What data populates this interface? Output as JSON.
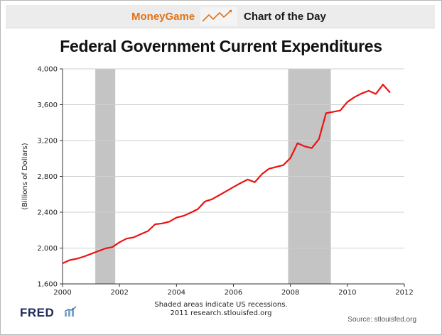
{
  "banner": {
    "brand_money": "Money",
    "brand_game": "Game",
    "subtitle": "Chart of the Day",
    "logo_icon": "rising-line-chart-icon"
  },
  "footer": {
    "fred_label": "FRED",
    "fred_icon": "mini-chart-icon",
    "note_line1": "Shaded areas indicate US recessions.",
    "note_line2": "2011 research.stlouisfed.org",
    "source": "Source: stlouisfed.org"
  },
  "colors": {
    "line": "#ee1111",
    "recession": "#c4c4c4",
    "brand_orange": "#e0731a"
  },
  "chart_data": {
    "type": "line",
    "title": "Federal Government Current Expenditures",
    "xlabel": "",
    "ylabel": "(Billions of Dollars)",
    "xlim": [
      2000,
      2012
    ],
    "ylim": [
      1600,
      4000
    ],
    "x_ticks": [
      2000,
      2002,
      2004,
      2006,
      2008,
      2010,
      2012
    ],
    "y_ticks": [
      1600,
      2000,
      2400,
      2800,
      3200,
      3600,
      4000
    ],
    "x_tick_labels": [
      "2000",
      "2002",
      "2004",
      "2006",
      "2008",
      "2010",
      "2012"
    ],
    "y_tick_labels": [
      "1,600",
      "2,000",
      "2,400",
      "2,800",
      "3,200",
      "3,600",
      "4,000"
    ],
    "grid": true,
    "recessions": [
      [
        2001.15,
        2001.85
      ],
      [
        2007.92,
        2009.42
      ]
    ],
    "series": [
      {
        "x": [
          2000.0,
          2000.25,
          2000.5,
          2000.75,
          2001.0,
          2001.25,
          2001.5,
          2001.75,
          2002.0,
          2002.25,
          2002.5,
          2002.75,
          2003.0,
          2003.25,
          2003.5,
          2003.75,
          2004.0,
          2004.25,
          2004.5,
          2004.75,
          2005.0,
          2005.25,
          2005.5,
          2005.75,
          2006.0,
          2006.25,
          2006.5,
          2006.75,
          2007.0,
          2007.25,
          2007.5,
          2007.75,
          2008.0,
          2008.25,
          2008.5,
          2008.75,
          2009.0,
          2009.25,
          2009.5,
          2009.75,
          2010.0,
          2010.25,
          2010.5,
          2010.75,
          2011.0,
          2011.25,
          2011.5
        ],
        "values": [
          1830,
          1865,
          1880,
          1905,
          1935,
          1965,
          1995,
          2010,
          2065,
          2105,
          2120,
          2155,
          2190,
          2265,
          2275,
          2295,
          2340,
          2360,
          2395,
          2435,
          2520,
          2545,
          2590,
          2635,
          2680,
          2725,
          2765,
          2735,
          2825,
          2885,
          2905,
          2925,
          3005,
          3170,
          3135,
          3115,
          3215,
          3505,
          3520,
          3535,
          3630,
          3685,
          3725,
          3755,
          3720,
          3825,
          3735
        ]
      }
    ]
  }
}
